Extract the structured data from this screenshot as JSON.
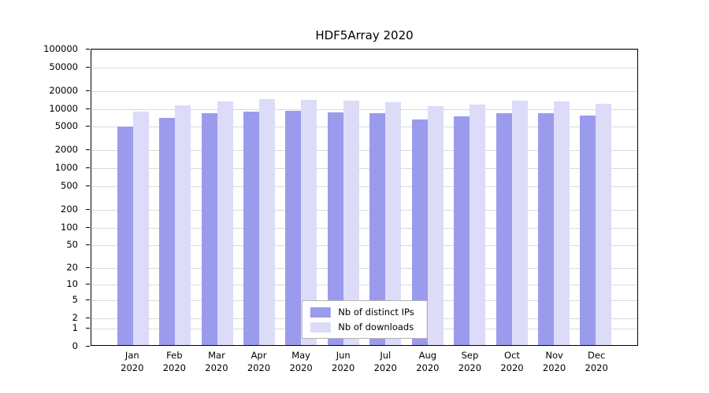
{
  "chart_data": {
    "type": "bar",
    "title": "HDF5Array 2020",
    "categories": [
      "Jan",
      "Feb",
      "Mar",
      "Apr",
      "May",
      "Jun",
      "Jul",
      "Aug",
      "Sep",
      "Oct",
      "Nov",
      "Dec"
    ],
    "year_label": "2020",
    "series": [
      {
        "name": "Nb of distinct IPs",
        "color": "#9b9bee",
        "values": [
          4700,
          6600,
          8100,
          8400,
          8700,
          8300,
          8000,
          6300,
          7000,
          7900,
          7900,
          7400
        ]
      },
      {
        "name": "Nb of downloads",
        "color": "#dcdcf8",
        "values": [
          8500,
          11000,
          12600,
          14000,
          13400,
          13200,
          12300,
          10400,
          11100,
          12900,
          12800,
          11500
        ]
      }
    ],
    "yticks": [
      0,
      1,
      2,
      5,
      10,
      20,
      50,
      100,
      200,
      500,
      1000,
      2000,
      5000,
      10000,
      20000,
      50000,
      100000
    ],
    "ylim": [
      0,
      100000
    ],
    "yscale": "log1p",
    "grid": "horizontal",
    "legend_position": "inside-bottom-center"
  }
}
